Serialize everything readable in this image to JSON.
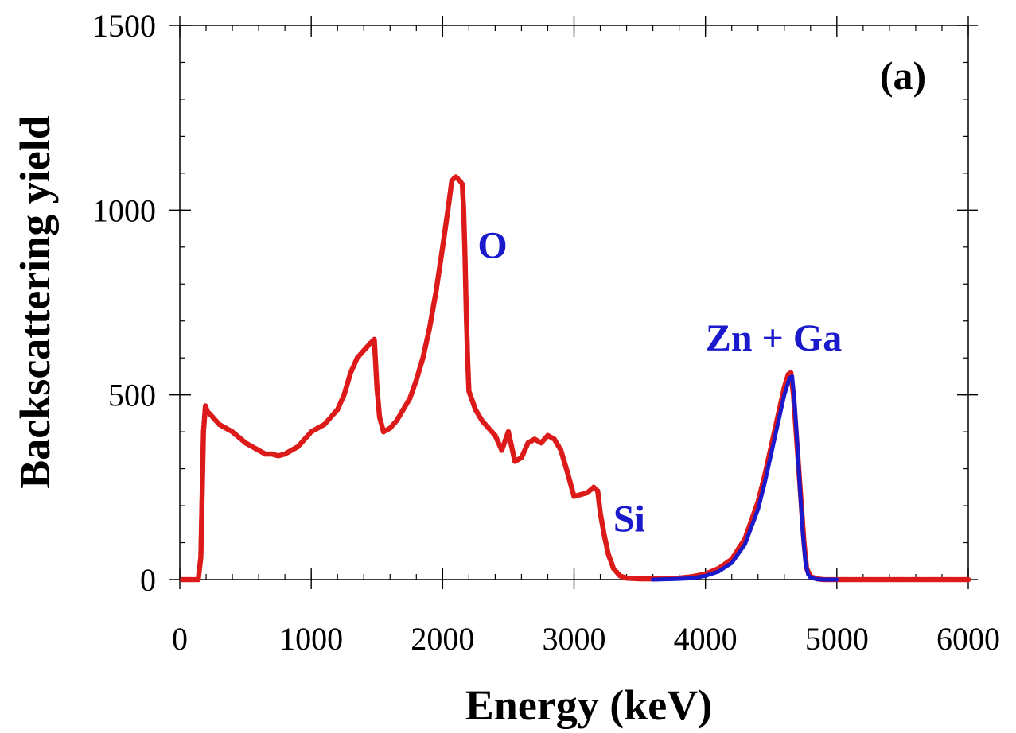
{
  "chart_data": {
    "type": "scatter",
    "xlabel": "Energy (keV)",
    "ylabel": "Backscattering yield",
    "xlim": [
      0,
      6000
    ],
    "ylim": [
      0,
      1500
    ],
    "x_ticks": [
      0,
      1000,
      2000,
      3000,
      4000,
      5000,
      6000
    ],
    "y_ticks": [
      0,
      500,
      1000,
      1500
    ],
    "x_minor_step": 200,
    "y_minor_step": 100,
    "grid": false,
    "panel_label": "(a)",
    "annotations": [
      {
        "text": "O",
        "x": 2380,
        "y": 870
      },
      {
        "text": "Zn + Ga",
        "x": 4520,
        "y": 620
      },
      {
        "text": "Si",
        "x": 3420,
        "y": 130
      }
    ],
    "series": [
      {
        "color": "#dd1a1a",
        "points": [
          [
            20,
            0
          ],
          [
            60,
            0
          ],
          [
            100,
            0
          ],
          [
            140,
            0
          ],
          [
            160,
            60
          ],
          [
            170,
            230
          ],
          [
            180,
            400
          ],
          [
            195,
            470
          ],
          [
            210,
            455
          ],
          [
            250,
            440
          ],
          [
            300,
            420
          ],
          [
            350,
            410
          ],
          [
            400,
            400
          ],
          [
            450,
            385
          ],
          [
            500,
            370
          ],
          [
            550,
            360
          ],
          [
            600,
            350
          ],
          [
            650,
            340
          ],
          [
            700,
            340
          ],
          [
            750,
            335
          ],
          [
            800,
            340
          ],
          [
            850,
            350
          ],
          [
            900,
            360
          ],
          [
            950,
            380
          ],
          [
            1000,
            400
          ],
          [
            1050,
            410
          ],
          [
            1100,
            420
          ],
          [
            1150,
            440
          ],
          [
            1200,
            460
          ],
          [
            1250,
            500
          ],
          [
            1300,
            560
          ],
          [
            1350,
            600
          ],
          [
            1400,
            620
          ],
          [
            1450,
            640
          ],
          [
            1480,
            650
          ],
          [
            1500,
            520
          ],
          [
            1520,
            440
          ],
          [
            1550,
            400
          ],
          [
            1600,
            410
          ],
          [
            1650,
            430
          ],
          [
            1700,
            460
          ],
          [
            1750,
            490
          ],
          [
            1800,
            540
          ],
          [
            1850,
            600
          ],
          [
            1900,
            680
          ],
          [
            1950,
            780
          ],
          [
            2000,
            900
          ],
          [
            2040,
            1000
          ],
          [
            2070,
            1080
          ],
          [
            2100,
            1090
          ],
          [
            2130,
            1080
          ],
          [
            2150,
            1070
          ],
          [
            2160,
            1000
          ],
          [
            2170,
            880
          ],
          [
            2180,
            720
          ],
          [
            2190,
            600
          ],
          [
            2200,
            510
          ],
          [
            2250,
            460
          ],
          [
            2300,
            430
          ],
          [
            2350,
            410
          ],
          [
            2400,
            390
          ],
          [
            2450,
            350
          ],
          [
            2500,
            400
          ],
          [
            2550,
            320
          ],
          [
            2600,
            330
          ],
          [
            2650,
            370
          ],
          [
            2700,
            380
          ],
          [
            2750,
            370
          ],
          [
            2800,
            390
          ],
          [
            2850,
            380
          ],
          [
            2900,
            350
          ],
          [
            2950,
            290
          ],
          [
            3000,
            225
          ],
          [
            3050,
            230
          ],
          [
            3100,
            235
          ],
          [
            3150,
            250
          ],
          [
            3180,
            240
          ],
          [
            3200,
            180
          ],
          [
            3230,
            120
          ],
          [
            3260,
            70
          ],
          [
            3300,
            30
          ],
          [
            3350,
            10
          ],
          [
            3400,
            4
          ],
          [
            3500,
            2
          ],
          [
            3600,
            2
          ],
          [
            3700,
            3
          ],
          [
            3800,
            4
          ],
          [
            3900,
            8
          ],
          [
            4000,
            15
          ],
          [
            4100,
            30
          ],
          [
            4200,
            55
          ],
          [
            4300,
            110
          ],
          [
            4400,
            210
          ],
          [
            4450,
            280
          ],
          [
            4500,
            360
          ],
          [
            4550,
            440
          ],
          [
            4600,
            520
          ],
          [
            4630,
            555
          ],
          [
            4650,
            560
          ],
          [
            4670,
            500
          ],
          [
            4690,
            400
          ],
          [
            4710,
            300
          ],
          [
            4730,
            200
          ],
          [
            4750,
            100
          ],
          [
            4770,
            30
          ],
          [
            4800,
            8
          ],
          [
            4850,
            2
          ],
          [
            4900,
            0
          ],
          [
            5000,
            0
          ],
          [
            5200,
            0
          ],
          [
            5400,
            0
          ],
          [
            5600,
            0
          ],
          [
            5800,
            0
          ],
          [
            6000,
            0
          ]
        ]
      },
      {
        "color": "#1a1acc",
        "points": [
          [
            3600,
            0
          ],
          [
            3700,
            1
          ],
          [
            3800,
            2
          ],
          [
            3900,
            4
          ],
          [
            4000,
            10
          ],
          [
            4100,
            22
          ],
          [
            4200,
            45
          ],
          [
            4300,
            95
          ],
          [
            4400,
            190
          ],
          [
            4450,
            260
          ],
          [
            4500,
            340
          ],
          [
            4550,
            420
          ],
          [
            4600,
            500
          ],
          [
            4640,
            545
          ],
          [
            4660,
            550
          ],
          [
            4680,
            470
          ],
          [
            4700,
            360
          ],
          [
            4720,
            240
          ],
          [
            4740,
            130
          ],
          [
            4760,
            50
          ],
          [
            4780,
            15
          ],
          [
            4800,
            5
          ],
          [
            4850,
            1
          ],
          [
            4900,
            0
          ],
          [
            5000,
            0
          ]
        ]
      }
    ]
  }
}
